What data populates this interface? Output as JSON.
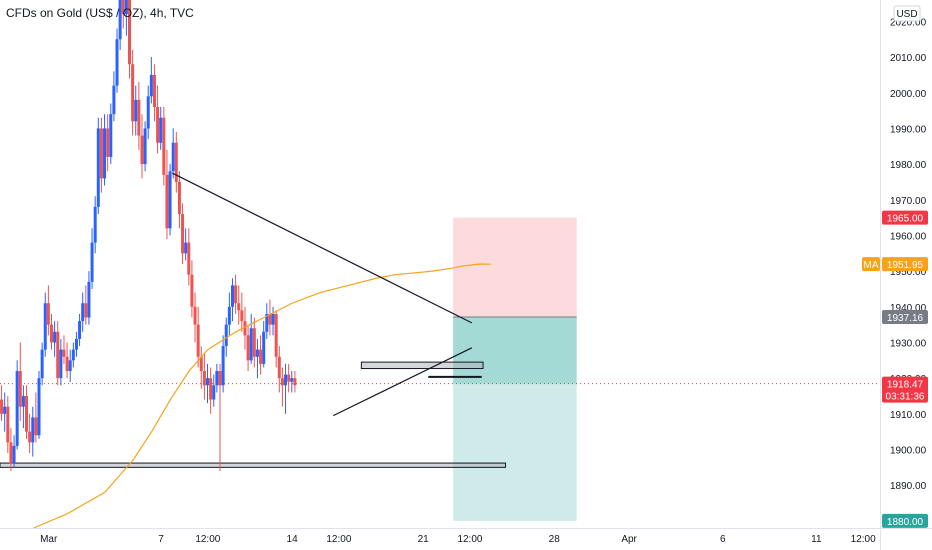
{
  "chart_data": {
    "type": "candlestick",
    "title": "CFDs on Gold (US$ / OZ), 4h, TVC",
    "currency": "USD",
    "y_ticks": [
      1890,
      1900,
      1910,
      1920,
      1930,
      1940,
      1950,
      1960,
      1970,
      1980,
      1990,
      2000,
      2010,
      2020
    ],
    "x_ticks": [
      {
        "label": "Mar",
        "day": 0
      },
      {
        "label": "7",
        "day": 6
      },
      {
        "label": "12:00",
        "day": 8.5
      },
      {
        "label": "14",
        "day": 13
      },
      {
        "label": "12:00",
        "day": 15.5
      },
      {
        "label": "21",
        "day": 20
      },
      {
        "label": "12:00",
        "day": 22.5
      },
      {
        "label": "28",
        "day": 27
      },
      {
        "label": "Apr",
        "day": 31
      },
      {
        "label": "6",
        "day": 36
      },
      {
        "label": "11",
        "day": 41
      },
      {
        "label": "12:00",
        "day": 43.5
      }
    ],
    "ylim": [
      1878,
      2026
    ],
    "xlim": [
      -2.6,
      44.4
    ],
    "colors": {
      "up": "#2962ff",
      "down": "#ef5350",
      "ma": "#f7a21b",
      "target": "#26a69a",
      "stop": "#f23645",
      "current": "#f23645",
      "entry": "#787b86"
    },
    "candles": [
      {
        "o": 1914,
        "h": 1918,
        "l": 1908,
        "c": 1910
      },
      {
        "o": 1910,
        "h": 1916,
        "l": 1905,
        "c": 1912
      },
      {
        "o": 1912,
        "h": 1915,
        "l": 1899,
        "c": 1902
      },
      {
        "o": 1902,
        "h": 1906,
        "l": 1894,
        "c": 1896
      },
      {
        "o": 1896,
        "h": 1904,
        "l": 1895,
        "c": 1901
      },
      {
        "o": 1901,
        "h": 1925,
        "l": 1900,
        "c": 1922
      },
      {
        "o": 1922,
        "h": 1930,
        "l": 1908,
        "c": 1912
      },
      {
        "o": 1912,
        "h": 1918,
        "l": 1906,
        "c": 1915
      },
      {
        "o": 1915,
        "h": 1918,
        "l": 1903,
        "c": 1905
      },
      {
        "o": 1905,
        "h": 1910,
        "l": 1899,
        "c": 1902
      },
      {
        "o": 1902,
        "h": 1912,
        "l": 1898,
        "c": 1909
      },
      {
        "o": 1909,
        "h": 1916,
        "l": 1902,
        "c": 1904
      },
      {
        "o": 1904,
        "h": 1922,
        "l": 1903,
        "c": 1920
      },
      {
        "o": 1920,
        "h": 1930,
        "l": 1918,
        "c": 1928
      },
      {
        "o": 1928,
        "h": 1944,
        "l": 1926,
        "c": 1941
      },
      {
        "o": 1941,
        "h": 1946,
        "l": 1932,
        "c": 1935
      },
      {
        "o": 1935,
        "h": 1938,
        "l": 1928,
        "c": 1930
      },
      {
        "o": 1930,
        "h": 1936,
        "l": 1926,
        "c": 1933
      },
      {
        "o": 1933,
        "h": 1936,
        "l": 1918,
        "c": 1920
      },
      {
        "o": 1920,
        "h": 1931,
        "l": 1918,
        "c": 1928
      },
      {
        "o": 1928,
        "h": 1932,
        "l": 1924,
        "c": 1926
      },
      {
        "o": 1926,
        "h": 1930,
        "l": 1920,
        "c": 1922
      },
      {
        "o": 1922,
        "h": 1928,
        "l": 1919,
        "c": 1925
      },
      {
        "o": 1925,
        "h": 1930,
        "l": 1923,
        "c": 1928
      },
      {
        "o": 1928,
        "h": 1933,
        "l": 1926,
        "c": 1931
      },
      {
        "o": 1931,
        "h": 1938,
        "l": 1929,
        "c": 1936
      },
      {
        "o": 1936,
        "h": 1944,
        "l": 1933,
        "c": 1941
      },
      {
        "o": 1941,
        "h": 1946,
        "l": 1935,
        "c": 1937
      },
      {
        "o": 1937,
        "h": 1950,
        "l": 1935,
        "c": 1947
      },
      {
        "o": 1947,
        "h": 1962,
        "l": 1945,
        "c": 1958
      },
      {
        "o": 1958,
        "h": 1971,
        "l": 1955,
        "c": 1968
      },
      {
        "o": 1968,
        "h": 1993,
        "l": 1966,
        "c": 1990
      },
      {
        "o": 1990,
        "h": 1993,
        "l": 1972,
        "c": 1976
      },
      {
        "o": 1976,
        "h": 1994,
        "l": 1974,
        "c": 1990
      },
      {
        "o": 1990,
        "h": 1994,
        "l": 1978,
        "c": 1982
      },
      {
        "o": 1982,
        "h": 1997,
        "l": 1980,
        "c": 1994
      },
      {
        "o": 1994,
        "h": 2006,
        "l": 1992,
        "c": 2002
      },
      {
        "o": 2002,
        "h": 2018,
        "l": 2000,
        "c": 2015
      },
      {
        "o": 2015,
        "h": 2034,
        "l": 2012,
        "c": 2028
      },
      {
        "o": 2028,
        "h": 2032,
        "l": 2018,
        "c": 2022
      },
      {
        "o": 2022,
        "h": 2030,
        "l": 2016,
        "c": 2026
      },
      {
        "o": 2026,
        "h": 2028,
        "l": 2004,
        "c": 2008
      },
      {
        "o": 2008,
        "h": 2012,
        "l": 1988,
        "c": 1992
      },
      {
        "o": 1992,
        "h": 2002,
        "l": 1988,
        "c": 1998
      },
      {
        "o": 1998,
        "h": 2003,
        "l": 1984,
        "c": 1988
      },
      {
        "o": 1988,
        "h": 1994,
        "l": 1976,
        "c": 1980
      },
      {
        "o": 1980,
        "h": 1992,
        "l": 1978,
        "c": 1990
      },
      {
        "o": 1990,
        "h": 2002,
        "l": 1987,
        "c": 1999
      },
      {
        "o": 1999,
        "h": 2010,
        "l": 1997,
        "c": 2005
      },
      {
        "o": 2005,
        "h": 2008,
        "l": 1992,
        "c": 1996
      },
      {
        "o": 1996,
        "h": 2002,
        "l": 1983,
        "c": 1986
      },
      {
        "o": 1986,
        "h": 1996,
        "l": 1984,
        "c": 1993
      },
      {
        "o": 1993,
        "h": 1996,
        "l": 1974,
        "c": 1977
      },
      {
        "o": 1977,
        "h": 1984,
        "l": 1959,
        "c": 1962
      },
      {
        "o": 1962,
        "h": 1980,
        "l": 1960,
        "c": 1978
      },
      {
        "o": 1978,
        "h": 1990,
        "l": 1976,
        "c": 1986
      },
      {
        "o": 1986,
        "h": 1989,
        "l": 1972,
        "c": 1975
      },
      {
        "o": 1975,
        "h": 1978,
        "l": 1962,
        "c": 1966
      },
      {
        "o": 1966,
        "h": 1969,
        "l": 1952,
        "c": 1955
      },
      {
        "o": 1955,
        "h": 1962,
        "l": 1953,
        "c": 1958
      },
      {
        "o": 1958,
        "h": 1962,
        "l": 1946,
        "c": 1949
      },
      {
        "o": 1949,
        "h": 1953,
        "l": 1937,
        "c": 1940
      },
      {
        "o": 1940,
        "h": 1944,
        "l": 1930,
        "c": 1935
      },
      {
        "o": 1935,
        "h": 1940,
        "l": 1923,
        "c": 1926
      },
      {
        "o": 1926,
        "h": 1929,
        "l": 1917,
        "c": 1922
      },
      {
        "o": 1922,
        "h": 1927,
        "l": 1914,
        "c": 1918
      },
      {
        "o": 1918,
        "h": 1924,
        "l": 1913,
        "c": 1920
      },
      {
        "o": 1920,
        "h": 1923,
        "l": 1910,
        "c": 1914
      },
      {
        "o": 1914,
        "h": 1921,
        "l": 1912,
        "c": 1918
      },
      {
        "o": 1918,
        "h": 1924,
        "l": 1916,
        "c": 1922
      },
      {
        "o": 1922,
        "h": 1924,
        "l": 1894,
        "c": 1918
      },
      {
        "o": 1918,
        "h": 1932,
        "l": 1916,
        "c": 1929
      },
      {
        "o": 1929,
        "h": 1937,
        "l": 1926,
        "c": 1935
      },
      {
        "o": 1935,
        "h": 1944,
        "l": 1932,
        "c": 1940
      },
      {
        "o": 1940,
        "h": 1948,
        "l": 1936,
        "c": 1946
      },
      {
        "o": 1946,
        "h": 1949,
        "l": 1938,
        "c": 1941
      },
      {
        "o": 1941,
        "h": 1946,
        "l": 1935,
        "c": 1939
      },
      {
        "o": 1939,
        "h": 1944,
        "l": 1933,
        "c": 1936
      },
      {
        "o": 1936,
        "h": 1940,
        "l": 1928,
        "c": 1932
      },
      {
        "o": 1932,
        "h": 1935,
        "l": 1922,
        "c": 1925
      },
      {
        "o": 1925,
        "h": 1938,
        "l": 1924,
        "c": 1934
      },
      {
        "o": 1934,
        "h": 1937,
        "l": 1923,
        "c": 1926
      },
      {
        "o": 1926,
        "h": 1931,
        "l": 1920,
        "c": 1928
      },
      {
        "o": 1928,
        "h": 1932,
        "l": 1921,
        "c": 1924
      },
      {
        "o": 1924,
        "h": 1936,
        "l": 1923,
        "c": 1933
      },
      {
        "o": 1933,
        "h": 1941,
        "l": 1931,
        "c": 1938
      },
      {
        "o": 1938,
        "h": 1942,
        "l": 1932,
        "c": 1935
      },
      {
        "o": 1935,
        "h": 1940,
        "l": 1932,
        "c": 1938
      },
      {
        "o": 1938,
        "h": 1939,
        "l": 1923,
        "c": 1926
      },
      {
        "o": 1926,
        "h": 1929,
        "l": 1916,
        "c": 1920
      },
      {
        "o": 1920,
        "h": 1923,
        "l": 1912,
        "c": 1918
      },
      {
        "o": 1918,
        "h": 1924,
        "l": 1910,
        "c": 1921
      },
      {
        "o": 1921,
        "h": 1924,
        "l": 1916,
        "c": 1919
      },
      {
        "o": 1919,
        "h": 1922,
        "l": 1916,
        "c": 1920
      },
      {
        "o": 1920,
        "h": 1922,
        "l": 1916,
        "c": 1918
      }
    ],
    "ma_line": [
      [
        -0.8,
        1878
      ],
      [
        1,
        1882
      ],
      [
        3,
        1888
      ],
      [
        4.5,
        1897
      ],
      [
        5.5,
        1905
      ],
      [
        6.5,
        1914
      ],
      [
        7.5,
        1922
      ],
      [
        8.5,
        1928
      ],
      [
        10,
        1933
      ],
      [
        11.5,
        1937
      ],
      [
        13,
        1941
      ],
      [
        14.5,
        1944
      ],
      [
        16,
        1946
      ],
      [
        17.5,
        1948
      ],
      [
        18.5,
        1949
      ],
      [
        19.5,
        1949.5
      ],
      [
        20.5,
        1950
      ],
      [
        21.5,
        1950.8
      ],
      [
        22.2,
        1951.5
      ],
      [
        23,
        1952
      ],
      [
        23.6,
        1951.95
      ]
    ],
    "trendlines": [
      {
        "from": [
          6.6,
          1977.5
        ],
        "to": [
          22.6,
          1935.5
        ]
      },
      {
        "from": [
          15.2,
          1909.5
        ],
        "to": [
          22.6,
          1928.5
        ]
      }
    ],
    "zones": [
      {
        "from": [
          16.7,
          1924.5
        ],
        "to": [
          23.2,
          1922.7
        ]
      },
      {
        "from": [
          20.3,
          1920.5
        ],
        "to": [
          23.1,
          1920.5
        ]
      },
      {
        "from": [
          -2.6,
          1896.2
        ],
        "to": [
          24.4,
          1895.0
        ]
      }
    ],
    "position": {
      "start": 21.6,
      "end": 28.2,
      "stop": 1965,
      "entry": 1937.16,
      "target": 1880
    },
    "current_price": 1918.47,
    "badges": [
      {
        "price": 1965,
        "label": "1965.00",
        "color": "#f23645"
      },
      {
        "price": 1951.95,
        "label": "1951.95",
        "color": "#f7a21b",
        "tag": "MA"
      },
      {
        "price": 1937.16,
        "label": "1937.16",
        "color": "#787b86"
      },
      {
        "price": 1918.47,
        "label": "1918.47",
        "sublabel": "03:31:36",
        "color": "#f23645"
      },
      {
        "price": 1880,
        "label": "1880.00",
        "color": "#26a69a"
      }
    ]
  }
}
